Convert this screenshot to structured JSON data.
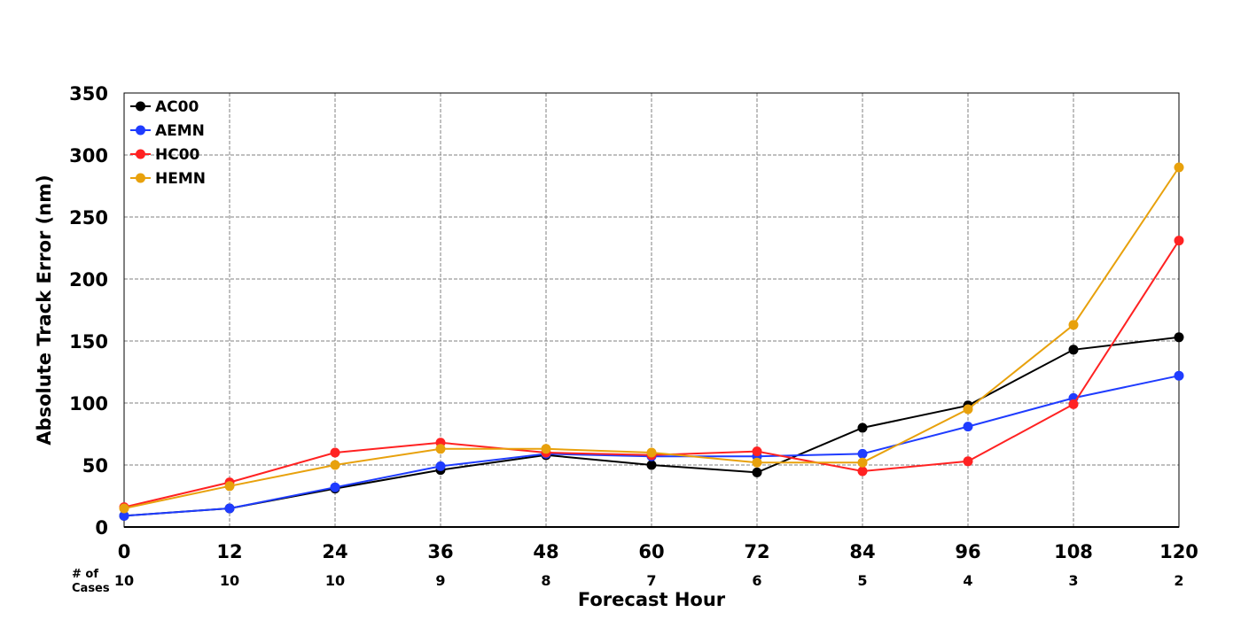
{
  "chart_data": {
    "type": "line",
    "title": "",
    "xlabel": "Forecast Hour",
    "ylabel": "Absolute Track Error (nm)",
    "x": [
      0,
      12,
      24,
      36,
      48,
      60,
      72,
      84,
      96,
      108,
      120
    ],
    "x_tick_labels": [
      "0",
      "12",
      "24",
      "36",
      "48",
      "60",
      "72",
      "84",
      "96",
      "108",
      "120"
    ],
    "xlim": [
      0,
      120
    ],
    "ylim": [
      0,
      350
    ],
    "y_ticks": [
      0,
      50,
      100,
      150,
      200,
      250,
      300,
      350
    ],
    "y_tick_labels": [
      "0",
      "50",
      "100",
      "150",
      "200",
      "250",
      "300",
      "350"
    ],
    "grid": true,
    "legend_position": "top-left",
    "cases_label": "# of Cases",
    "cases_label_lines": [
      "# of",
      "Cases"
    ],
    "cases": [
      "10",
      "10",
      "10",
      "9",
      "8",
      "7",
      "6",
      "5",
      "4",
      "3",
      "2"
    ],
    "series": [
      {
        "name": "AC00",
        "color": "#000000",
        "values": [
          9,
          15,
          31,
          46,
          58,
          50,
          44,
          80,
          98,
          143,
          153
        ]
      },
      {
        "name": "AEMN",
        "color": "#1f3cff",
        "values": [
          9,
          15,
          32,
          49,
          59,
          57,
          57,
          59,
          81,
          104,
          122
        ]
      },
      {
        "name": "HC00",
        "color": "#ff2222",
        "values": [
          16,
          36,
          60,
          68,
          60,
          58,
          61,
          45,
          53,
          99,
          231
        ]
      },
      {
        "name": "HEMN",
        "color": "#e8a10c",
        "values": [
          15,
          33,
          50,
          63,
          63,
          60,
          52,
          52,
          95,
          163,
          290
        ]
      }
    ]
  }
}
